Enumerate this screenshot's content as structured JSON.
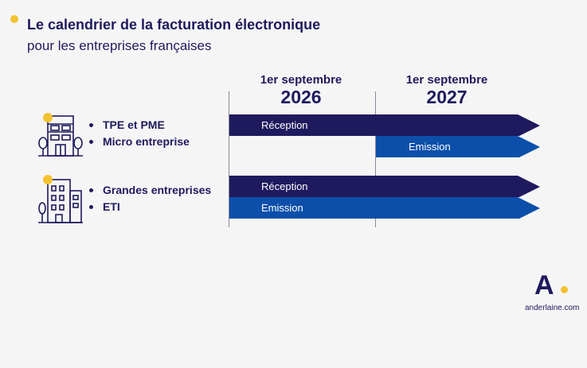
{
  "header": {
    "title": "Le calendrier de la facturation électronique",
    "subtitle": "pour les entreprises françaises"
  },
  "timeline": {
    "columns": [
      {
        "top": "1er septembre",
        "year": "2026"
      },
      {
        "top": "1er septembre",
        "year": "2027"
      }
    ]
  },
  "groups": [
    {
      "icon": "small-building-icon",
      "items": [
        "TPE et PME",
        "Micro entreprise"
      ],
      "bars": [
        {
          "label": "Réception",
          "starts_at": "2026"
        },
        {
          "label": "Emission",
          "starts_at": "2027"
        }
      ]
    },
    {
      "icon": "office-tower-icon",
      "items": [
        "Grandes entreprises",
        "ETI"
      ],
      "bars": [
        {
          "label": "Réception",
          "starts_at": "2026"
        },
        {
          "label": "Emission",
          "starts_at": "2026"
        }
      ]
    }
  ],
  "brand": {
    "logo_letter": "A",
    "url": "anderlaine.com"
  },
  "colors": {
    "navy": "#1f1a5e",
    "blue": "#0c4faa",
    "accent": "#f3c230",
    "background": "#f5f5f5"
  }
}
